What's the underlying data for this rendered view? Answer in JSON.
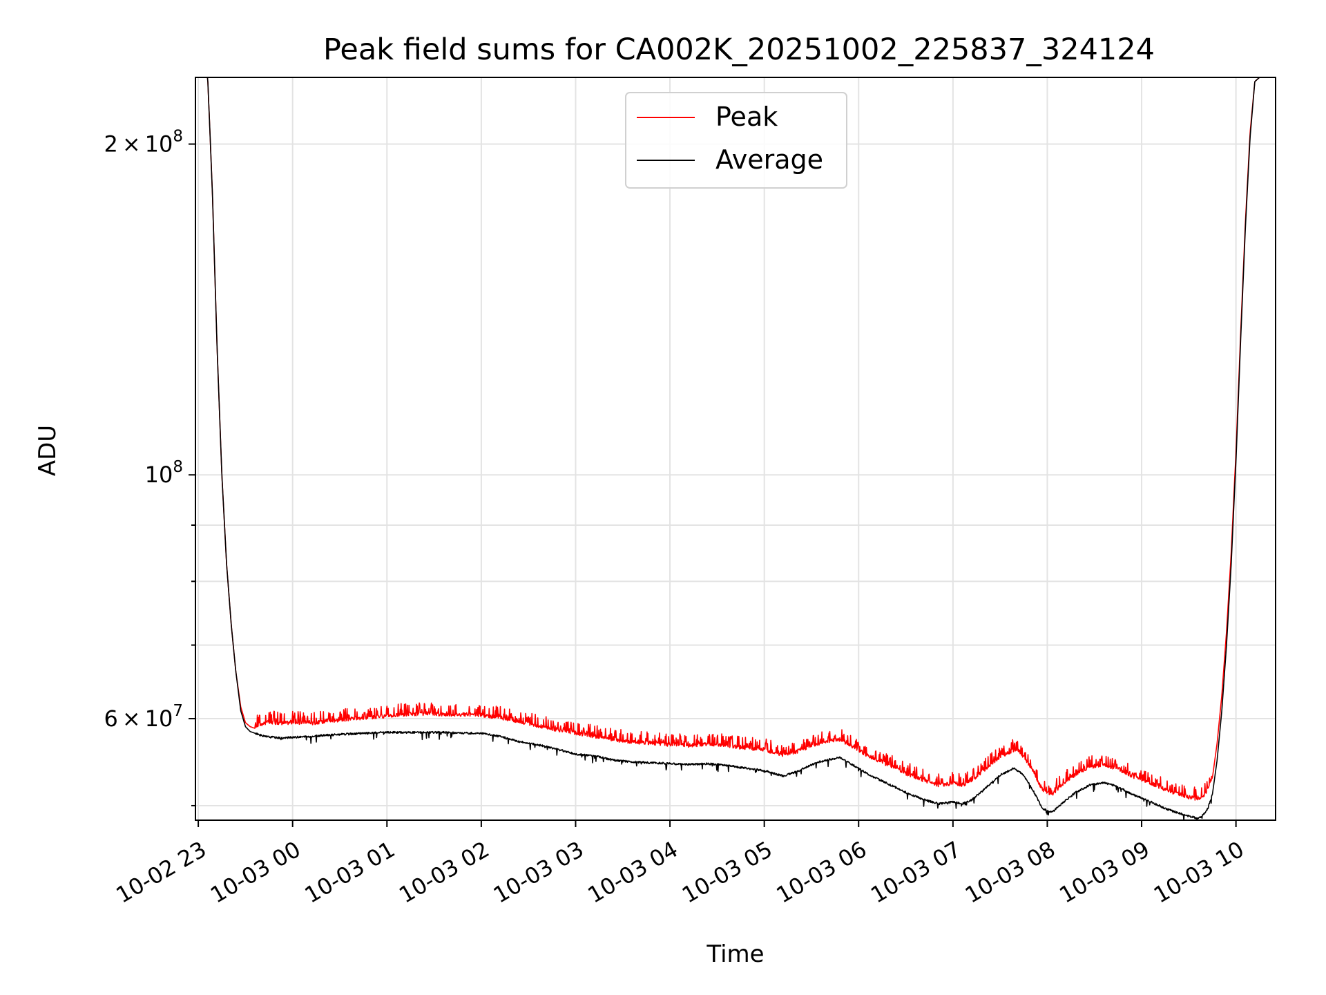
{
  "chart_data": {
    "type": "line",
    "title": "Peak field sums for CA002K_20251002_225837_324124",
    "xlabel": "Time",
    "ylabel": "ADU",
    "yscale": "log",
    "ylim": [
      48500000,
      230000000
    ],
    "xlim_hours": [
      -0.03,
      11.42
    ],
    "x_unit": "hours since 2025-10-02 23:00",
    "grid": true,
    "legend_position": "top-center",
    "x_ticks": [
      {
        "value": 0,
        "label": "10-02 23"
      },
      {
        "value": 1,
        "label": "10-03 00"
      },
      {
        "value": 2,
        "label": "10-03 01"
      },
      {
        "value": 3,
        "label": "10-03 02"
      },
      {
        "value": 4,
        "label": "10-03 03"
      },
      {
        "value": 5,
        "label": "10-03 04"
      },
      {
        "value": 6,
        "label": "10-03 05"
      },
      {
        "value": 7,
        "label": "10-03 06"
      },
      {
        "value": 8,
        "label": "10-03 07"
      },
      {
        "value": 9,
        "label": "10-03 08"
      },
      {
        "value": 10,
        "label": "10-03 09"
      },
      {
        "value": 11,
        "label": "10-03 10"
      }
    ],
    "y_major_ticks": [
      {
        "value": 60000000,
        "mantissa": "6",
        "exponent": "7",
        "times": "×",
        "base": "10"
      },
      {
        "value": 100000000,
        "mantissa": "",
        "exponent": "8",
        "times": "",
        "base": "10"
      },
      {
        "value": 200000000,
        "mantissa": "2",
        "exponent": "8",
        "times": "×",
        "base": "10"
      }
    ],
    "y_minor_ticks": [
      50000000,
      70000000,
      80000000,
      90000000
    ],
    "series": [
      {
        "name": "Peak",
        "color": "#ff0000",
        "x": [
          -0.03,
          0.1,
          0.15,
          0.2,
          0.25,
          0.3,
          0.35,
          0.4,
          0.45,
          0.5,
          0.55,
          0.6,
          0.65,
          0.7,
          0.8,
          0.9,
          1.0,
          1.2,
          1.4,
          1.6,
          1.8,
          2.0,
          2.2,
          2.4,
          2.6,
          2.8,
          3.0,
          3.2,
          3.4,
          3.6,
          3.8,
          4.0,
          4.2,
          4.4,
          4.6,
          4.8,
          5.0,
          5.2,
          5.4,
          5.6,
          5.8,
          6.0,
          6.2,
          6.35,
          6.5,
          6.65,
          6.8,
          6.95,
          7.1,
          7.3,
          7.5,
          7.7,
          7.85,
          8.0,
          8.1,
          8.2,
          8.35,
          8.5,
          8.65,
          8.75,
          8.85,
          8.95,
          9.05,
          9.15,
          9.3,
          9.45,
          9.6,
          9.75,
          9.9,
          10.1,
          10.25,
          10.4,
          10.5,
          10.6,
          10.65,
          10.7,
          10.75,
          10.8,
          10.85,
          10.9,
          10.95,
          11.0,
          11.05,
          11.1,
          11.15,
          11.2,
          11.25,
          11.42
        ],
        "y": [
          230000000,
          230000000,
          180000000,
          130000000,
          100000000,
          83000000,
          73000000,
          66000000,
          61500000,
          59500000,
          59000000,
          58800000,
          59000000,
          59200000,
          59300000,
          59200000,
          59300000,
          59200000,
          59500000,
          59700000,
          59900000,
          60100000,
          60300000,
          60400000,
          60300000,
          60300000,
          60200000,
          59900000,
          59400000,
          58900000,
          58400000,
          58000000,
          57600000,
          57200000,
          56900000,
          56800000,
          56600000,
          56500000,
          56700000,
          56500000,
          56200000,
          56000000,
          55400000,
          55800000,
          56500000,
          57000000,
          57200000,
          56300000,
          55300000,
          54300000,
          53300000,
          52500000,
          52000000,
          52200000,
          52000000,
          52500000,
          53800000,
          55200000,
          56000000,
          55200000,
          53500000,
          51500000,
          51000000,
          52000000,
          53200000,
          54000000,
          54300000,
          53800000,
          53000000,
          52200000,
          51500000,
          51000000,
          50700000,
          50500000,
          50800000,
          51500000,
          53000000,
          57000000,
          63000000,
          72000000,
          85000000,
          105000000,
          135000000,
          170000000,
          205000000,
          228000000,
          230000000,
          230000000
        ]
      },
      {
        "name": "Average",
        "color": "#000000",
        "x": [
          -0.03,
          0.1,
          0.15,
          0.2,
          0.25,
          0.3,
          0.35,
          0.4,
          0.45,
          0.5,
          0.55,
          0.6,
          0.65,
          0.7,
          0.8,
          0.9,
          1.0,
          1.2,
          1.4,
          1.6,
          1.8,
          2.0,
          2.2,
          2.4,
          2.6,
          2.8,
          3.0,
          3.2,
          3.4,
          3.6,
          3.8,
          4.0,
          4.2,
          4.4,
          4.6,
          4.8,
          5.0,
          5.2,
          5.4,
          5.6,
          5.8,
          6.0,
          6.2,
          6.35,
          6.5,
          6.65,
          6.8,
          6.95,
          7.1,
          7.3,
          7.5,
          7.7,
          7.85,
          8.0,
          8.1,
          8.2,
          8.35,
          8.5,
          8.65,
          8.75,
          8.85,
          8.95,
          9.05,
          9.15,
          9.3,
          9.45,
          9.6,
          9.75,
          9.9,
          10.1,
          10.25,
          10.4,
          10.5,
          10.6,
          10.65,
          10.7,
          10.75,
          10.8,
          10.85,
          10.9,
          10.95,
          11.0,
          11.05,
          11.1,
          11.15,
          11.2,
          11.25,
          11.42
        ],
        "y": [
          230000000,
          230000000,
          180000000,
          130000000,
          100000000,
          83000000,
          73000000,
          66000000,
          61000000,
          59000000,
          58400000,
          58200000,
          58000000,
          57800000,
          57700000,
          57600000,
          57700000,
          57800000,
          58000000,
          58100000,
          58200000,
          58300000,
          58300000,
          58300000,
          58300000,
          58200000,
          58200000,
          57800000,
          57200000,
          56800000,
          56300000,
          55700000,
          55500000,
          55000000,
          54800000,
          54700000,
          54600000,
          54500000,
          54600000,
          54400000,
          54100000,
          53800000,
          53200000,
          53700000,
          54500000,
          55000000,
          55300000,
          54400000,
          53400000,
          52400000,
          51400000,
          50600000,
          50200000,
          50400000,
          50200000,
          50600000,
          51900000,
          53300000,
          54100000,
          53300000,
          51600000,
          49700000,
          49300000,
          50200000,
          51400000,
          52200000,
          52500000,
          52000000,
          51200000,
          50400000,
          49700000,
          49200000,
          48900000,
          48700000,
          49000000,
          49700000,
          51200000,
          55000000,
          61000000,
          70000000,
          83000000,
          103000000,
          133000000,
          168000000,
          203000000,
          228000000,
          230000000,
          230000000
        ]
      }
    ]
  }
}
